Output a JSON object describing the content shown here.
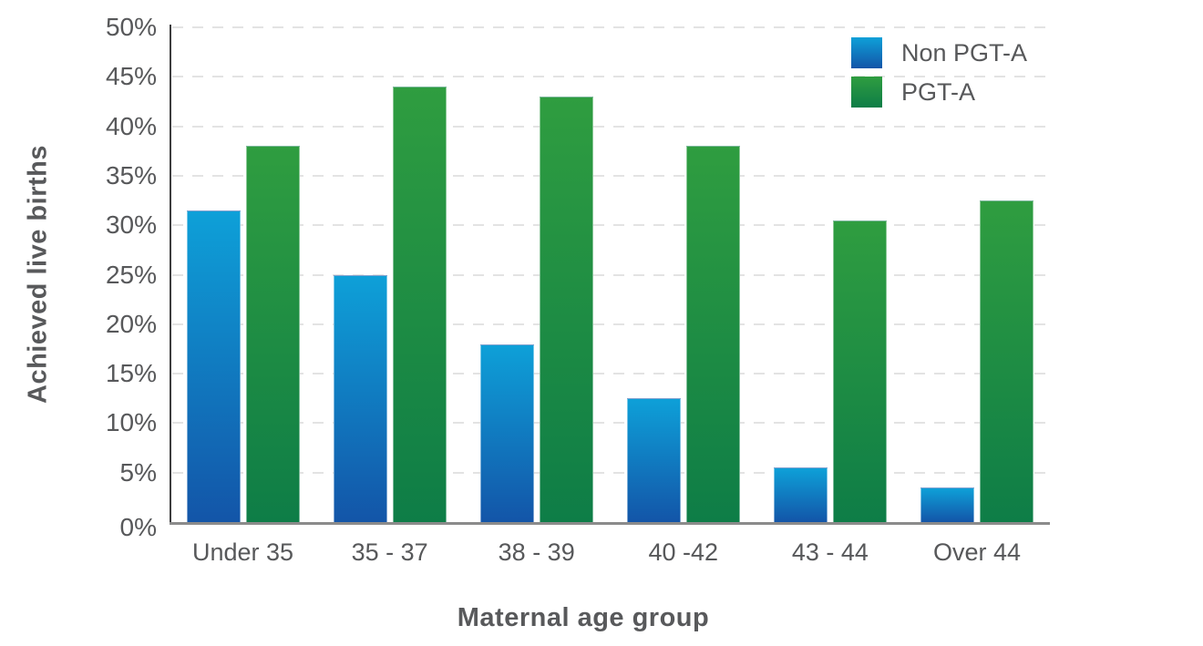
{
  "chart_data": {
    "type": "bar",
    "title": "",
    "categories": [
      "Under 35",
      "35 - 37",
      "38 - 39",
      "40 -42",
      "43 - 44",
      "Over 44"
    ],
    "series": [
      {
        "name": "Non PGT-A",
        "values": [
          31.5,
          25,
          18,
          12.5,
          5.5,
          3.5
        ],
        "gradient_top": "#0EA0D8",
        "gradient_bottom": "#1355A8"
      },
      {
        "name": "PGT-A",
        "values": [
          38,
          44,
          43,
          38,
          30.5,
          32.5
        ],
        "gradient_top": "#2F9D40",
        "gradient_bottom": "#0E7D47"
      }
    ],
    "xlabel": "Maternal age group",
    "ylabel": "Achieved live births",
    "ylim": [
      0,
      50
    ],
    "ytick_step": 5,
    "ytick_suffix": "%",
    "grid": "horizontal-dashed",
    "legend_position": "top-right"
  },
  "colors": {
    "text": "#58595b",
    "grid": "#e3e3e3",
    "y_axis_line": "#3d3d3f",
    "x_axis_line": "#8b8b8b",
    "background": "#ffffff"
  }
}
